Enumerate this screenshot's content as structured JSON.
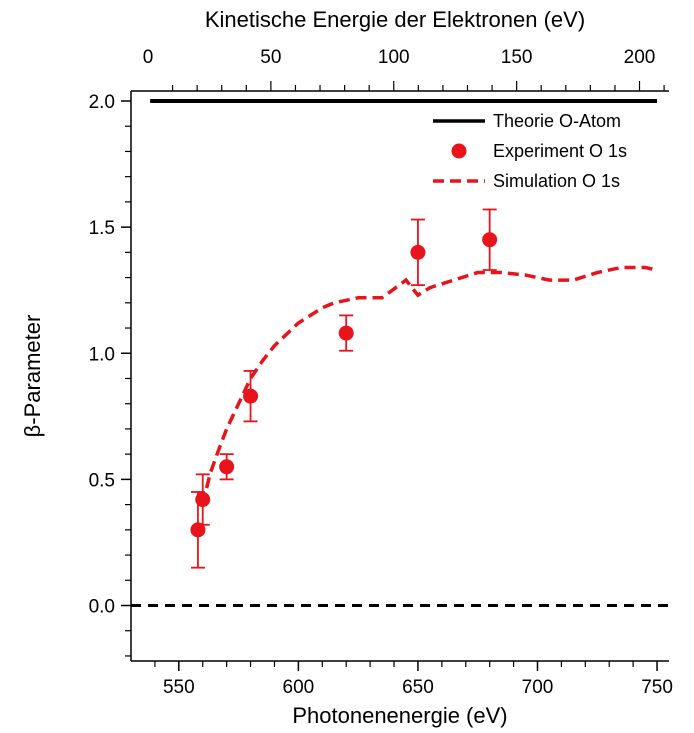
{
  "chart_data": {
    "type": "scatter",
    "xlabel": "Photonenenergie (eV)",
    "x2label": "Kinetische Energie der Elektronen (eV)",
    "ylabel": "β-Parameter",
    "xlim": [
      530,
      755
    ],
    "x2lim": [
      0,
      212
    ],
    "ylim": [
      -0.22,
      2.0
    ],
    "x_ticks": [
      550,
      600,
      650,
      700,
      750
    ],
    "x2_ticks": [
      0,
      50,
      100,
      150,
      200
    ],
    "y_ticks": [
      "0.0",
      "0.5",
      "1.0",
      "1.5",
      "2.0"
    ],
    "y_tick_values": [
      0.0,
      0.5,
      1.0,
      1.5,
      2.0
    ],
    "legend_position": "top-right",
    "colors": {
      "theory": "#000000",
      "experiment": "#e8141b",
      "simulation": "#e8141b",
      "zero_line": "#000000"
    },
    "series": [
      {
        "name": "Theorie O-Atom",
        "style": "solid-line",
        "x": [
          538,
          750
        ],
        "y": [
          2.0,
          2.0
        ]
      },
      {
        "name": "Experiment O 1s",
        "style": "markers-errorbars",
        "x": [
          558,
          560,
          570,
          580,
          620,
          650,
          680
        ],
        "y": [
          0.3,
          0.42,
          0.55,
          0.83,
          1.08,
          1.4,
          1.45
        ],
        "err": [
          0.15,
          0.1,
          0.05,
          0.1,
          0.07,
          0.13,
          0.12
        ]
      },
      {
        "name": "Simulation O 1s",
        "style": "dashed-line",
        "x": [
          560,
          563,
          566,
          570,
          575,
          580,
          585,
          590,
          600,
          610,
          615,
          620,
          625,
          635,
          645,
          650,
          655,
          665,
          675,
          685,
          695,
          705,
          715,
          725,
          735,
          745,
          750
        ],
        "y": [
          0.4,
          0.52,
          0.6,
          0.7,
          0.8,
          0.9,
          0.97,
          1.03,
          1.12,
          1.18,
          1.2,
          1.21,
          1.22,
          1.22,
          1.29,
          1.23,
          1.26,
          1.29,
          1.32,
          1.32,
          1.31,
          1.29,
          1.29,
          1.32,
          1.34,
          1.34,
          1.33
        ]
      },
      {
        "name": "",
        "style": "zero-dashed",
        "x": [
          530,
          755
        ],
        "y": [
          0.0,
          0.0
        ]
      }
    ]
  }
}
